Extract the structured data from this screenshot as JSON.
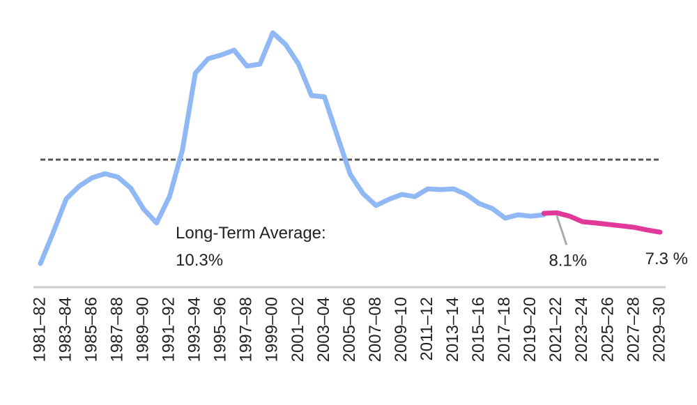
{
  "chart_data": {
    "type": "line",
    "categories": [
      "1981–82",
      null,
      "1983–84",
      null,
      "1985–86",
      null,
      "1987–88",
      null,
      "1989–90",
      null,
      "1991–92",
      null,
      "1993–94",
      null,
      "1995–96",
      null,
      "1997–98",
      null,
      "1999–00",
      null,
      "2001–02",
      null,
      "2003–04",
      null,
      "2005–06",
      null,
      "2007–08",
      null,
      "2009–10",
      null,
      "2011–12",
      null,
      "2013–14",
      null,
      "2015–16",
      null,
      "2017–18",
      null,
      "2019–20",
      null,
      "2021–22",
      null,
      "2023–24",
      null,
      "2025–26",
      null,
      "2027–28",
      null,
      "2029–30"
    ],
    "series": [
      {
        "color": "#8fb8f5",
        "values": [
          6.0,
          7.3,
          8.68,
          9.2,
          9.55,
          9.72,
          9.58,
          9.12,
          8.25,
          7.68,
          8.77,
          10.7,
          13.88,
          14.48,
          14.63,
          14.83,
          14.17,
          14.25,
          15.55,
          15.06,
          14.25,
          12.95,
          12.9,
          11.28,
          9.69,
          8.89,
          8.4,
          8.66,
          8.86,
          8.77,
          9.09,
          9.06,
          9.09,
          8.86,
          8.48,
          8.28,
          7.88,
          8.02,
          7.96,
          8.02,
          null,
          null,
          null,
          null,
          null,
          null,
          null,
          null,
          null
        ]
      },
      {
        "color": "#e0399a",
        "values": [
          null,
          null,
          null,
          null,
          null,
          null,
          null,
          null,
          null,
          null,
          null,
          null,
          null,
          null,
          null,
          null,
          null,
          null,
          null,
          null,
          null,
          null,
          null,
          null,
          null,
          null,
          null,
          null,
          null,
          null,
          null,
          null,
          null,
          null,
          null,
          null,
          null,
          null,
          null,
          8.08,
          8.1,
          7.96,
          7.73,
          7.68,
          7.62,
          7.56,
          7.5,
          7.39,
          7.3
        ],
        "value_labels": [
          null,
          null,
          null,
          null,
          null,
          null,
          null,
          null,
          null,
          null,
          null,
          null,
          null,
          null,
          null,
          null,
          null,
          null,
          null,
          null,
          null,
          null,
          null,
          null,
          null,
          null,
          null,
          null,
          null,
          null,
          null,
          null,
          null,
          null,
          null,
          null,
          null,
          null,
          null,
          null,
          "8.1%",
          null,
          null,
          null,
          null,
          null,
          null,
          null,
          "7.3 %"
        ]
      }
    ],
    "reference_line": {
      "text": "Long-Term Average:",
      "value": 10.3,
      "value_label": "10.3%",
      "color": "#555555"
    },
    "ylim": [
      5,
      16
    ]
  }
}
